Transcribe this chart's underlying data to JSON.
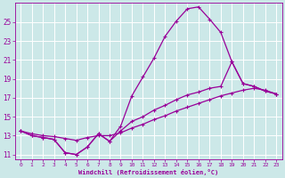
{
  "xlabel": "Windchill (Refroidissement éolien,°C)",
  "bg_color": "#cce8e8",
  "line_color": "#990099",
  "grid_color": "#ffffff",
  "xlim": [
    -0.5,
    23.5
  ],
  "ylim": [
    10.5,
    27.0
  ],
  "yticks": [
    11,
    13,
    15,
    17,
    19,
    21,
    23,
    25
  ],
  "xticks": [
    0,
    1,
    2,
    3,
    4,
    5,
    6,
    7,
    8,
    9,
    10,
    11,
    12,
    13,
    14,
    15,
    16,
    17,
    18,
    19,
    20,
    21,
    22,
    23
  ],
  "line1_x": [
    0,
    1,
    2,
    3,
    4,
    5,
    6,
    7,
    8,
    9,
    10,
    11,
    12,
    13,
    14,
    15,
    16,
    17,
    18,
    19,
    20,
    21,
    22,
    23
  ],
  "line1_y": [
    13.5,
    13.0,
    12.8,
    12.6,
    11.2,
    11.0,
    11.8,
    13.2,
    12.4,
    14.0,
    17.2,
    19.2,
    21.2,
    23.5,
    25.1,
    26.4,
    26.6,
    25.3,
    23.9,
    20.8,
    18.5,
    18.2,
    17.7,
    17.4
  ],
  "line2_x": [
    0,
    1,
    2,
    3,
    4,
    5,
    6,
    7,
    8,
    9,
    10,
    11,
    12,
    13,
    14,
    15,
    16,
    17,
    18,
    19,
    20,
    21,
    22,
    23
  ],
  "line2_y": [
    13.5,
    13.0,
    12.8,
    12.6,
    11.2,
    11.0,
    11.8,
    13.2,
    12.4,
    13.5,
    14.5,
    15.0,
    15.7,
    16.2,
    16.8,
    17.3,
    17.6,
    18.0,
    18.2,
    20.8,
    18.5,
    18.2,
    17.7,
    17.4
  ],
  "line3_x": [
    0,
    1,
    2,
    3,
    4,
    5,
    6,
    7,
    8,
    9,
    10,
    11,
    12,
    13,
    14,
    15,
    16,
    17,
    18,
    19,
    20,
    21,
    22,
    23
  ],
  "line3_y": [
    13.5,
    13.2,
    13.0,
    12.9,
    12.7,
    12.5,
    12.8,
    13.0,
    13.0,
    13.3,
    13.8,
    14.2,
    14.7,
    15.1,
    15.6,
    16.0,
    16.4,
    16.8,
    17.2,
    17.5,
    17.8,
    18.0,
    17.8,
    17.4
  ]
}
